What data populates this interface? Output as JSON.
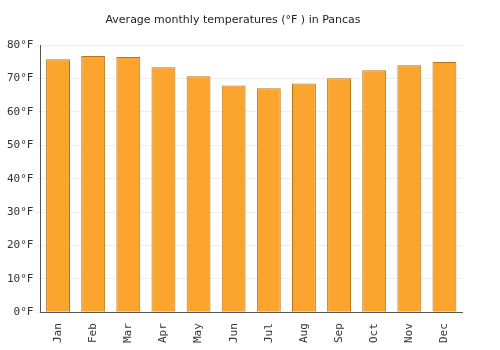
{
  "chart_data": {
    "type": "bar",
    "title": "Average monthly temperatures (°F ) in Pancas",
    "categories": [
      "Jan",
      "Feb",
      "Mar",
      "Apr",
      "May",
      "Jun",
      "Jul",
      "Aug",
      "Sep",
      "Oct",
      "Nov",
      "Dec"
    ],
    "values": [
      75.8,
      76.8,
      76.5,
      73.4,
      70.7,
      67.9,
      67.1,
      68.5,
      70.1,
      72.5,
      74.0,
      75.0
    ],
    "color": "#fba42e",
    "ylim": [
      0,
      80
    ],
    "yticks": [
      {
        "value": 0,
        "label": "0°F"
      },
      {
        "value": 10,
        "label": "10°F"
      },
      {
        "value": 20,
        "label": "20°F"
      },
      {
        "value": 30,
        "label": "30°F"
      },
      {
        "value": 40,
        "label": "40°F"
      },
      {
        "value": 50,
        "label": "50°F"
      },
      {
        "value": 60,
        "label": "60°F"
      },
      {
        "value": 70,
        "label": "70°F"
      },
      {
        "value": 80,
        "label": "80°F"
      }
    ],
    "grid": true
  }
}
